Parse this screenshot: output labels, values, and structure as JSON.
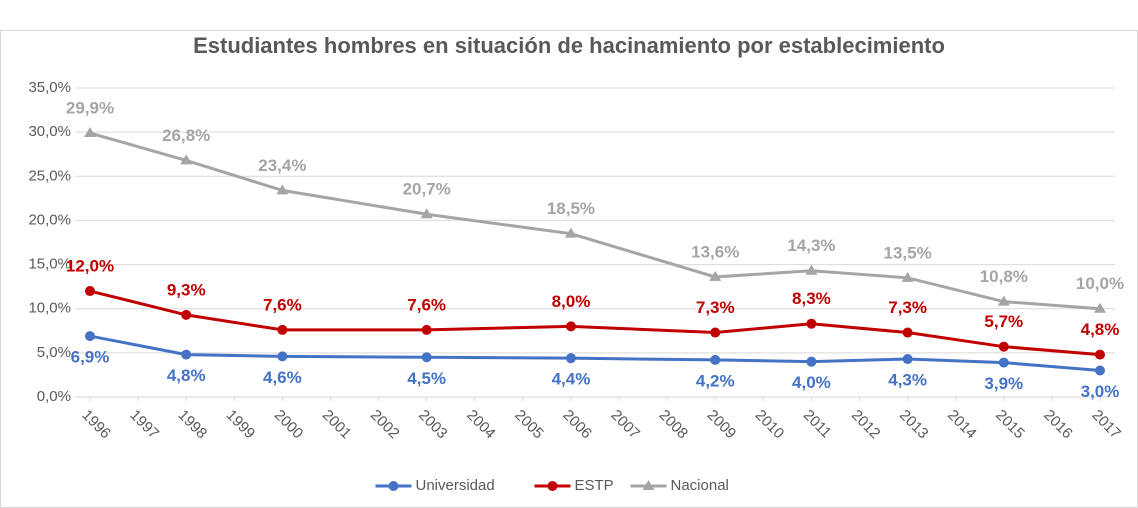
{
  "chart_data": {
    "type": "line",
    "title": "Estudiantes hombres en situación de hacinamiento por establecimiento",
    "x": [
      1996,
      1998,
      2000,
      2003,
      2006,
      2009,
      2011,
      2013,
      2015,
      2017
    ],
    "xlim": [
      1996,
      2017
    ],
    "xticks": [
      1996,
      1997,
      1998,
      1999,
      2000,
      2001,
      2002,
      2003,
      2004,
      2005,
      2006,
      2007,
      2008,
      2009,
      2010,
      2011,
      2012,
      2013,
      2014,
      2015,
      2016,
      2017
    ],
    "ylim": [
      0,
      35
    ],
    "yticks": [
      {
        "value": 0,
        "label": "0,0%"
      },
      {
        "value": 5,
        "label": "5,0%"
      },
      {
        "value": 10,
        "label": "10,0%"
      },
      {
        "value": 15,
        "label": "15,0%"
      },
      {
        "value": 20,
        "label": "20,0%"
      },
      {
        "value": 25,
        "label": "25,0%"
      },
      {
        "value": 30,
        "label": "30,0%"
      },
      {
        "value": 35,
        "label": "35,0%"
      }
    ],
    "grid": true,
    "legend": "bottom",
    "series": [
      {
        "name": "Universidad",
        "color": "#4472c4",
        "marker": "circle",
        "values": [
          6.9,
          4.8,
          4.6,
          4.5,
          4.4,
          4.2,
          4.0,
          4.3,
          3.9,
          3.0
        ],
        "value_labels": [
          "6,9%",
          "4,8%",
          "4,6%",
          "4,5%",
          "4,4%",
          "4,2%",
          "4,0%",
          "4,3%",
          "3,9%",
          "3,0%"
        ]
      },
      {
        "name": "ESTP",
        "color": "#c00000",
        "marker": "circle",
        "values": [
          12.0,
          9.3,
          7.6,
          7.6,
          8.0,
          7.3,
          8.3,
          7.3,
          5.7,
          4.8
        ],
        "value_labels": [
          "12,0%",
          "9,3%",
          "7,6%",
          "7,6%",
          "8,0%",
          "7,3%",
          "8,3%",
          "7,3%",
          "5,7%",
          "4,8%"
        ]
      },
      {
        "name": "Nacional",
        "color": "#a5a5a5",
        "marker": "triangle",
        "values": [
          29.9,
          26.8,
          23.4,
          20.7,
          18.5,
          13.6,
          14.3,
          13.5,
          10.8,
          10.0
        ],
        "value_labels": [
          "29,9%",
          "26,8%",
          "23,4%",
          "20,7%",
          "18,5%",
          "13,6%",
          "14,3%",
          "13,5%",
          "10,8%",
          "10,0%"
        ]
      }
    ]
  }
}
